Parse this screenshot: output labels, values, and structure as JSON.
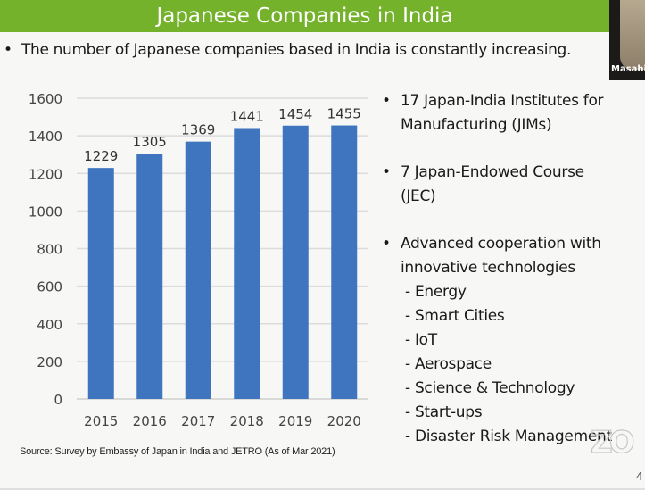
{
  "slide": {
    "title": "Japanese Companies in India",
    "intro_bullet": "•",
    "intro": "The number of Japanese companies based in India is constantly increasing.",
    "source": "Source: Survey by Embassy of Japan in India and JETRO (As of Mar 2021)",
    "page_number": "4",
    "colors": {
      "title_bar": "#74b22c",
      "bar": "#3f75bf",
      "text": "#1a1a1a"
    }
  },
  "video": {
    "participant_name": "Masahi"
  },
  "right_list": {
    "bullet": "•",
    "items": [
      {
        "line1": "17 Japan-India Institutes for",
        "line2": "Manufacturing (JIMs)"
      },
      {
        "line1": "7 Japan-Endowed Course",
        "line2": "(JEC)"
      },
      {
        "line1": "Advanced cooperation with",
        "line2": "innovative technologies"
      }
    ],
    "sub_items": [
      "- Energy",
      "- Smart Cities",
      "- IoT",
      "- Aerospace",
      "- Science & Technology",
      "- Start-ups",
      "- Disaster Risk Management"
    ]
  },
  "logo": {
    "text": "ZO",
    "icon": "zoom-watermark-icon"
  },
  "chart_data": {
    "type": "bar",
    "title": "",
    "xlabel": "",
    "ylabel": "",
    "categories": [
      "2015",
      "2016",
      "2017",
      "2018",
      "2019",
      "2020"
    ],
    "values": [
      1229,
      1305,
      1369,
      1441,
      1454,
      1455
    ],
    "data_labels": [
      "1229",
      "1305",
      "1369",
      "1441",
      "1454",
      "1455"
    ],
    "ylim": [
      0,
      1600
    ],
    "yticks": [
      0,
      200,
      400,
      600,
      800,
      1000,
      1200,
      1400,
      1600
    ],
    "ytick_labels": [
      "0",
      "200",
      "400",
      "600",
      "800",
      "1000",
      "1200",
      "1400",
      "1600"
    ],
    "grid": true,
    "legend": "none",
    "bar_color": "#3f75bf"
  }
}
